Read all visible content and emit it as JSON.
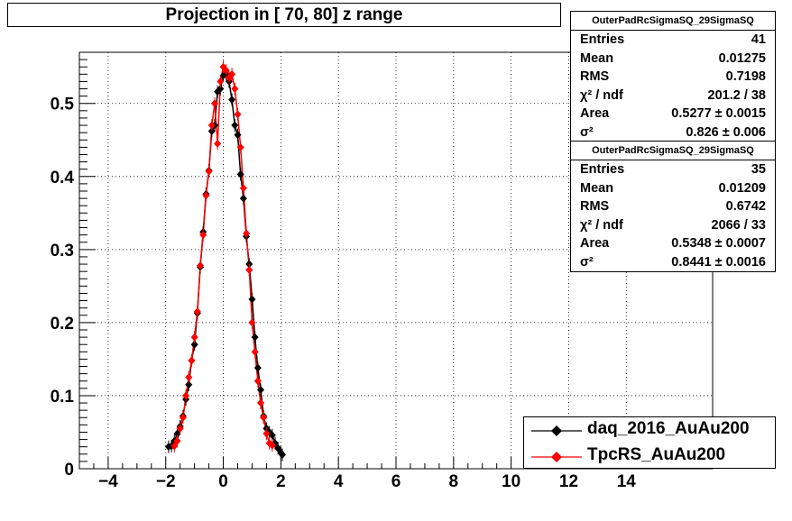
{
  "title": "Projection in [  70,  80] z range",
  "stats_boxes": [
    {
      "name": "OuterPadRcSigmaSQ_29SigmaSQ",
      "rows": [
        {
          "key": "Entries",
          "value": "41"
        },
        {
          "key": "Mean",
          "value": "0.01275"
        },
        {
          "key": "RMS",
          "value": "0.7198"
        },
        {
          "key": "χ² / ndf",
          "value": "201.2 / 38"
        },
        {
          "key": "Area",
          "value": "0.5277 ± 0.0015"
        },
        {
          "key": "σ²",
          "value": "0.826 ± 0.006"
        }
      ]
    },
    {
      "name": "OuterPadRcSigmaSQ_29SigmaSQ",
      "rows": [
        {
          "key": "Entries",
          "value": "35"
        },
        {
          "key": "Mean",
          "value": "0.01209"
        },
        {
          "key": "RMS",
          "value": "0.6742"
        },
        {
          "key": "χ² / ndf",
          "value": "2066 / 33"
        },
        {
          "key": "Area",
          "value": "0.5348 ± 0.0007"
        },
        {
          "key": "σ²",
          "value": "0.8441 ± 0.0016"
        }
      ]
    }
  ],
  "chart_data": {
    "type": "scatter",
    "xlim": [
      -5,
      17
    ],
    "ylim": [
      0,
      0.57
    ],
    "x_ticks": [
      -4,
      -2,
      0,
      2,
      4,
      6,
      8,
      10,
      12,
      14
    ],
    "y_ticks": [
      0,
      0.1,
      0.2,
      0.3,
      0.4,
      0.5
    ],
    "tick_labels_x": [
      "−4",
      "−2",
      "0",
      "2",
      "4",
      "6",
      "8",
      "10",
      "12",
      "14"
    ],
    "tick_labels_y": [
      "0",
      "0.1",
      "0.2",
      "0.3",
      "0.4",
      "0.5"
    ],
    "grid": true,
    "legend_position": "bottom-right",
    "series": [
      {
        "name": "daq_2016_AuAu200",
        "color": "#000000",
        "points": [
          [
            -1.9,
            0.03
          ],
          [
            -1.8,
            0.031
          ],
          [
            -1.7,
            0.038
          ],
          [
            -1.6,
            0.048
          ],
          [
            -1.5,
            0.058
          ],
          [
            -1.4,
            0.072
          ],
          [
            -1.3,
            0.095
          ],
          [
            -1.2,
            0.115
          ],
          [
            -1.1,
            0.148
          ],
          [
            -1.0,
            0.17
          ],
          [
            -0.9,
            0.213
          ],
          [
            -0.8,
            0.276
          ],
          [
            -0.7,
            0.324
          ],
          [
            -0.6,
            0.376
          ],
          [
            -0.5,
            0.408
          ],
          [
            -0.4,
            0.462
          ],
          [
            -0.3,
            0.47
          ],
          [
            -0.2,
            0.516
          ],
          [
            -0.1,
            0.52
          ],
          [
            0.0,
            0.538
          ],
          [
            0.1,
            0.54
          ],
          [
            0.2,
            0.53
          ],
          [
            0.3,
            0.505
          ],
          [
            0.4,
            0.47
          ],
          [
            0.5,
            0.457
          ],
          [
            0.6,
            0.403
          ],
          [
            0.7,
            0.37
          ],
          [
            0.8,
            0.318
          ],
          [
            0.9,
            0.28
          ],
          [
            1.0,
            0.232
          ],
          [
            1.1,
            0.18
          ],
          [
            1.2,
            0.138
          ],
          [
            1.3,
            0.108
          ],
          [
            1.4,
            0.072
          ],
          [
            1.5,
            0.055
          ],
          [
            1.6,
            0.05
          ],
          [
            1.7,
            0.046
          ],
          [
            1.8,
            0.035
          ],
          [
            1.9,
            0.028
          ],
          [
            2.0,
            0.022
          ],
          [
            2.05,
            0.019
          ]
        ]
      },
      {
        "name": "TpcRS_AuAu200",
        "color": "#ff0000",
        "points": [
          [
            -1.7,
            0.031
          ],
          [
            -1.6,
            0.038
          ],
          [
            -1.5,
            0.055
          ],
          [
            -1.4,
            0.07
          ],
          [
            -1.3,
            0.1
          ],
          [
            -1.2,
            0.125
          ],
          [
            -1.1,
            0.148
          ],
          [
            -1.0,
            0.18
          ],
          [
            -0.9,
            0.215
          ],
          [
            -0.8,
            0.278
          ],
          [
            -0.7,
            0.32
          ],
          [
            -0.6,
            0.374
          ],
          [
            -0.5,
            0.407
          ],
          [
            -0.4,
            0.47
          ],
          [
            -0.3,
            0.5
          ],
          [
            -0.2,
            0.445
          ],
          [
            -0.1,
            0.53
          ],
          [
            0.0,
            0.55
          ],
          [
            0.1,
            0.545
          ],
          [
            0.2,
            0.535
          ],
          [
            0.3,
            0.54
          ],
          [
            0.4,
            0.52
          ],
          [
            0.5,
            0.485
          ],
          [
            0.6,
            0.44
          ],
          [
            0.7,
            0.384
          ],
          [
            0.8,
            0.322
          ],
          [
            0.9,
            0.272
          ],
          [
            1.0,
            0.2
          ],
          [
            1.1,
            0.16
          ],
          [
            1.2,
            0.12
          ],
          [
            1.3,
            0.09
          ],
          [
            1.4,
            0.07
          ],
          [
            1.5,
            0.048
          ],
          [
            1.6,
            0.035
          ],
          [
            1.7,
            0.032
          ]
        ]
      }
    ]
  }
}
